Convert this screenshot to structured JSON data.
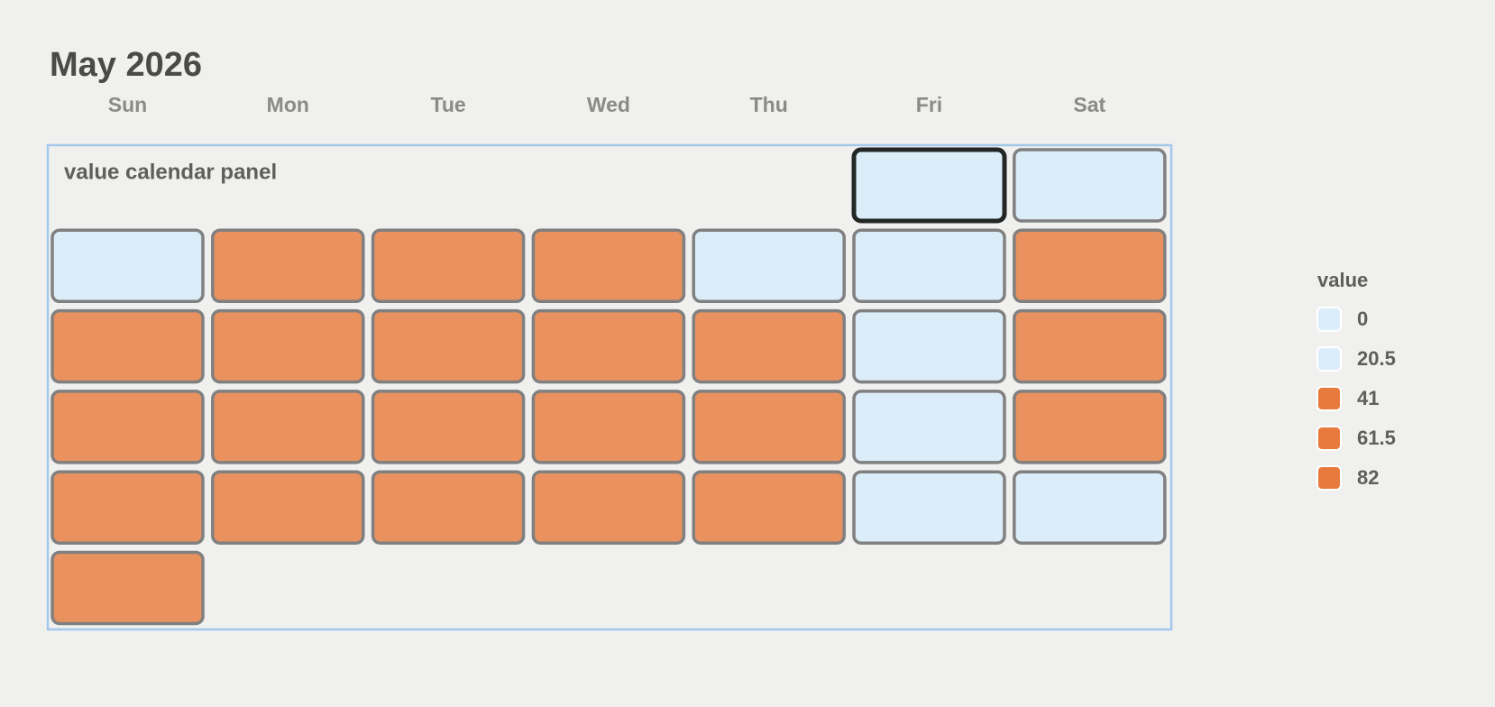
{
  "chart_data": {
    "type": "calendar",
    "title": "May 2026",
    "weekdays": [
      "Sun",
      "Mon",
      "Tue",
      "Wed",
      "Thu",
      "Fri",
      "Sat"
    ],
    "panel_label": "value calendar panel",
    "first_weekday": 5,
    "selected": 0,
    "values": [
      0,
      0,
      0,
      82,
      82,
      82,
      0,
      0,
      82,
      82,
      82,
      82,
      82,
      82,
      0,
      82,
      82,
      82,
      82,
      82,
      82,
      0,
      82,
      82,
      82,
      82,
      82,
      82,
      0,
      0,
      82
    ],
    "legend": {
      "title": "value",
      "items": [
        {
          "value": 0,
          "color": "#dcedfa"
        },
        {
          "value": 20.5,
          "color": "#dcedfa"
        },
        {
          "value": 41,
          "color": "#e77a3c"
        },
        {
          "value": 61.5,
          "color": "#e77a3c"
        },
        {
          "value": 82,
          "color": "#e77a3c"
        }
      ]
    }
  }
}
